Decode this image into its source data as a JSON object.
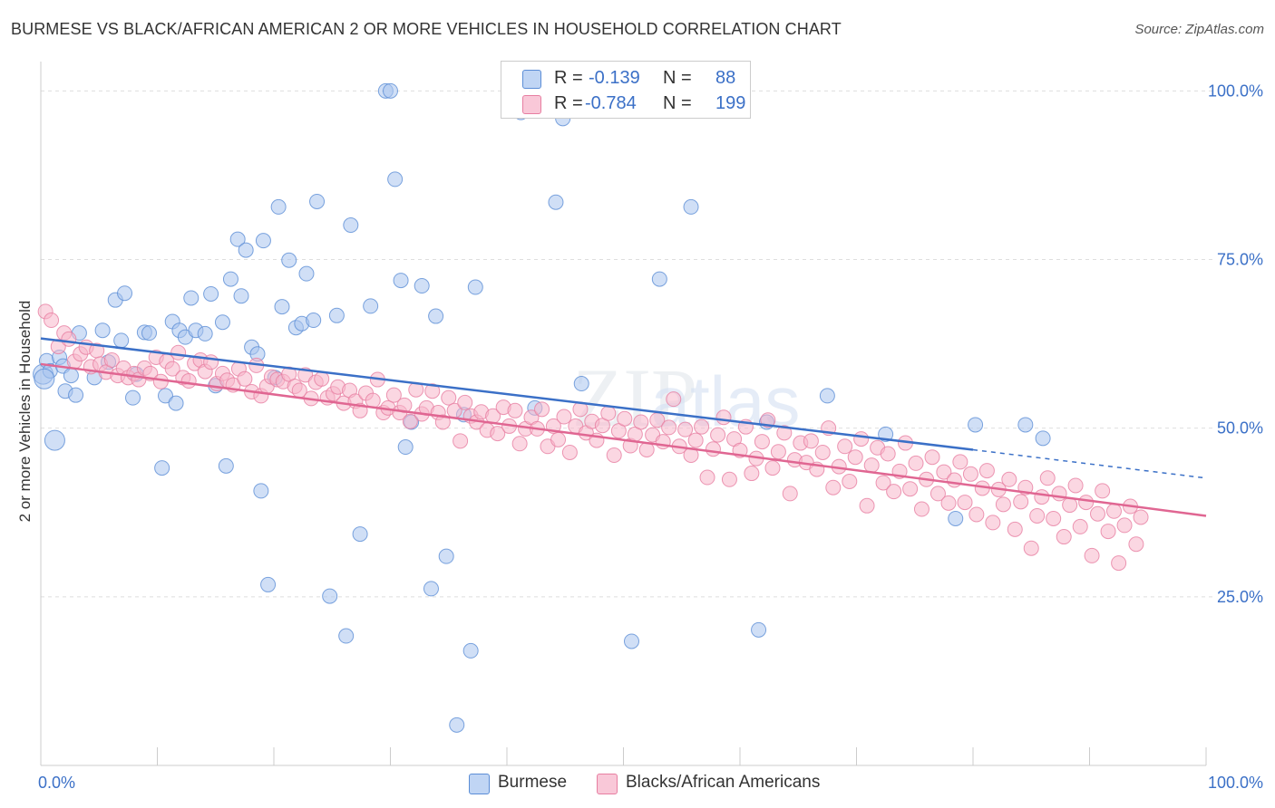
{
  "chart_data": {
    "type": "scatter",
    "title": "BURMESE VS BLACK/AFRICAN AMERICAN 2 OR MORE VEHICLES IN HOUSEHOLD CORRELATION CHART",
    "source": "Source: ZipAtlas.com",
    "xlabel": "",
    "ylabel": "2 or more Vehicles in Household",
    "xlim": [
      0,
      100
    ],
    "ylim": [
      0,
      103
    ],
    "x_tick_labels": [
      {
        "value": 0,
        "label": "0.0%"
      },
      {
        "value": 100,
        "label": "100.0%"
      }
    ],
    "y_tick_labels": [
      {
        "value": 25,
        "label": "25.0%"
      },
      {
        "value": 50,
        "label": "50.0%"
      },
      {
        "value": 75,
        "label": "75.0%"
      },
      {
        "value": 100,
        "label": "100.0%"
      }
    ],
    "grid": true,
    "watermark": "ZIPatlas",
    "legend": {
      "position": "top-center",
      "entries": [
        {
          "r_label": "R =",
          "r_value": "-0.139",
          "n_label": "N =",
          "n_value": "88",
          "color": "#a9c5ef"
        },
        {
          "r_label": "R =",
          "r_value": "-0.784",
          "n_label": "N =",
          "n_value": "199",
          "color": "#f7b6cb"
        }
      ]
    },
    "series": [
      {
        "name": "Burmese",
        "color": "#a9c5ef",
        "edge_color": "#5b8dd6",
        "trend": {
          "x0": 0,
          "y0": 63.3,
          "x1": 80,
          "y1": 46.8,
          "dash_to_x": 100,
          "dash_to_y": 42.6,
          "color": "#3b70c7"
        },
        "points": [
          [
            0.2,
            58.0
          ],
          [
            0.5,
            60.0
          ],
          [
            0.8,
            58.5
          ],
          [
            1.2,
            48.2
          ],
          [
            1.6,
            60.5
          ],
          [
            1.9,
            59.2
          ],
          [
            2.1,
            55.5
          ],
          [
            2.6,
            57.8
          ],
          [
            3.0,
            54.9
          ],
          [
            3.3,
            64.1
          ],
          [
            4.6,
            57.5
          ],
          [
            5.3,
            64.5
          ],
          [
            5.8,
            59.8
          ],
          [
            6.4,
            69.0
          ],
          [
            6.9,
            63.0
          ],
          [
            7.2,
            70.0
          ],
          [
            7.9,
            54.5
          ],
          [
            8.2,
            58.0
          ],
          [
            8.9,
            64.2
          ],
          [
            9.3,
            64.1
          ],
          [
            10.4,
            44.1
          ],
          [
            10.7,
            54.8
          ],
          [
            11.3,
            65.8
          ],
          [
            11.6,
            53.7
          ],
          [
            11.9,
            64.5
          ],
          [
            12.4,
            63.5
          ],
          [
            12.9,
            69.3
          ],
          [
            13.3,
            64.5
          ],
          [
            14.1,
            64.0
          ],
          [
            14.6,
            69.9
          ],
          [
            15.0,
            56.3
          ],
          [
            15.6,
            65.7
          ],
          [
            15.9,
            44.4
          ],
          [
            16.3,
            72.1
          ],
          [
            17.2,
            69.6
          ],
          [
            16.9,
            78.0
          ],
          [
            17.6,
            76.4
          ],
          [
            18.1,
            62.0
          ],
          [
            18.6,
            61.0
          ],
          [
            18.9,
            40.7
          ],
          [
            19.1,
            77.8
          ],
          [
            19.5,
            26.8
          ],
          [
            20.1,
            57.5
          ],
          [
            20.4,
            82.8
          ],
          [
            20.7,
            68.0
          ],
          [
            21.3,
            74.9
          ],
          [
            21.9,
            64.9
          ],
          [
            22.4,
            65.5
          ],
          [
            22.8,
            72.9
          ],
          [
            23.4,
            66.0
          ],
          [
            23.7,
            83.6
          ],
          [
            24.8,
            25.1
          ],
          [
            25.4,
            66.7
          ],
          [
            26.2,
            19.2
          ],
          [
            26.6,
            80.1
          ],
          [
            27.4,
            34.3
          ],
          [
            28.3,
            68.1
          ],
          [
            29.6,
            100.0
          ],
          [
            30.0,
            100.0
          ],
          [
            30.4,
            86.9
          ],
          [
            30.9,
            71.9
          ],
          [
            31.3,
            47.2
          ],
          [
            31.8,
            50.9
          ],
          [
            32.7,
            71.1
          ],
          [
            33.5,
            26.2
          ],
          [
            33.9,
            66.6
          ],
          [
            34.8,
            31.0
          ],
          [
            35.7,
            6.0
          ],
          [
            36.3,
            52.0
          ],
          [
            36.9,
            17.0
          ],
          [
            37.3,
            70.9
          ],
          [
            41.2,
            96.8
          ],
          [
            42.4,
            53.0
          ],
          [
            44.2,
            83.5
          ],
          [
            44.8,
            95.9
          ],
          [
            46.4,
            56.6
          ],
          [
            50.7,
            18.4
          ],
          [
            53.1,
            72.1
          ],
          [
            55.8,
            82.8
          ],
          [
            61.6,
            20.1
          ],
          [
            62.3,
            50.9
          ],
          [
            67.5,
            54.8
          ],
          [
            72.5,
            49.1
          ],
          [
            78.5,
            36.6
          ],
          [
            80.2,
            50.5
          ],
          [
            84.5,
            50.5
          ],
          [
            86.0,
            48.5
          ],
          [
            0.3,
            57.3
          ]
        ]
      },
      {
        "name": "Blacks/African Americans",
        "color": "#f7b6cb",
        "edge_color": "#e77ea1",
        "trend": {
          "x0": 0,
          "y0": 59.5,
          "x1": 100,
          "y1": 37.0,
          "color": "#e06692"
        },
        "points": [
          [
            0.4,
            67.3
          ],
          [
            0.9,
            66.0
          ],
          [
            1.5,
            62.1
          ],
          [
            2.0,
            64.1
          ],
          [
            2.4,
            63.2
          ],
          [
            2.9,
            59.9
          ],
          [
            3.4,
            61.0
          ],
          [
            3.9,
            62.0
          ],
          [
            4.3,
            59.1
          ],
          [
            4.8,
            61.5
          ],
          [
            5.1,
            59.5
          ],
          [
            5.6,
            58.3
          ],
          [
            6.1,
            60.1
          ],
          [
            6.6,
            57.8
          ],
          [
            7.1,
            58.9
          ],
          [
            7.5,
            57.5
          ],
          [
            8.0,
            58.1
          ],
          [
            8.4,
            57.2
          ],
          [
            8.9,
            58.9
          ],
          [
            9.4,
            58.1
          ],
          [
            9.9,
            60.5
          ],
          [
            10.3,
            56.9
          ],
          [
            10.8,
            59.9
          ],
          [
            11.3,
            58.8
          ],
          [
            11.8,
            61.2
          ],
          [
            12.2,
            57.5
          ],
          [
            12.7,
            57.0
          ],
          [
            13.2,
            59.6
          ],
          [
            13.7,
            60.1
          ],
          [
            14.1,
            58.4
          ],
          [
            14.6,
            59.8
          ],
          [
            15.1,
            56.6
          ],
          [
            15.6,
            58.1
          ],
          [
            16.0,
            57.1
          ],
          [
            16.5,
            56.4
          ],
          [
            17.0,
            58.8
          ],
          [
            17.5,
            57.3
          ],
          [
            18.1,
            55.4
          ],
          [
            18.5,
            59.3
          ],
          [
            18.9,
            54.8
          ],
          [
            19.4,
            56.2
          ],
          [
            19.8,
            57.6
          ],
          [
            20.3,
            57.2
          ],
          [
            20.8,
            56.9
          ],
          [
            21.3,
            58.0
          ],
          [
            21.8,
            56.2
          ],
          [
            22.2,
            55.6
          ],
          [
            22.7,
            57.9
          ],
          [
            23.2,
            54.4
          ],
          [
            23.6,
            56.8
          ],
          [
            24.1,
            57.3
          ],
          [
            24.6,
            54.5
          ],
          [
            25.1,
            55.1
          ],
          [
            25.5,
            56.1
          ],
          [
            26.0,
            53.7
          ],
          [
            26.5,
            55.6
          ],
          [
            27.0,
            54.0
          ],
          [
            27.4,
            52.6
          ],
          [
            27.9,
            55.2
          ],
          [
            28.5,
            54.1
          ],
          [
            28.9,
            57.2
          ],
          [
            29.4,
            52.3
          ],
          [
            29.8,
            53.0
          ],
          [
            30.3,
            54.9
          ],
          [
            30.8,
            52.3
          ],
          [
            31.2,
            53.4
          ],
          [
            31.7,
            51.0
          ],
          [
            32.2,
            55.7
          ],
          [
            32.7,
            52.1
          ],
          [
            33.1,
            53.0
          ],
          [
            33.6,
            55.5
          ],
          [
            34.1,
            52.3
          ],
          [
            34.5,
            50.9
          ],
          [
            35.0,
            54.5
          ],
          [
            35.5,
            52.6
          ],
          [
            36.0,
            48.1
          ],
          [
            36.4,
            53.8
          ],
          [
            36.9,
            51.8
          ],
          [
            37.4,
            50.9
          ],
          [
            37.8,
            52.4
          ],
          [
            38.3,
            49.7
          ],
          [
            38.8,
            51.8
          ],
          [
            39.2,
            49.2
          ],
          [
            39.7,
            53.1
          ],
          [
            40.2,
            50.3
          ],
          [
            40.7,
            52.6
          ],
          [
            41.1,
            47.7
          ],
          [
            41.6,
            49.9
          ],
          [
            42.1,
            51.6
          ],
          [
            42.6,
            49.9
          ],
          [
            43.0,
            52.8
          ],
          [
            43.5,
            47.3
          ],
          [
            44.0,
            50.3
          ],
          [
            44.4,
            48.3
          ],
          [
            44.9,
            51.7
          ],
          [
            45.4,
            46.4
          ],
          [
            45.9,
            50.3
          ],
          [
            46.3,
            52.8
          ],
          [
            46.8,
            49.3
          ],
          [
            47.3,
            51.0
          ],
          [
            47.7,
            48.2
          ],
          [
            48.2,
            50.4
          ],
          [
            48.7,
            52.2
          ],
          [
            49.2,
            46.0
          ],
          [
            49.6,
            49.6
          ],
          [
            50.1,
            51.4
          ],
          [
            50.6,
            47.4
          ],
          [
            51.0,
            49.1
          ],
          [
            51.5,
            50.9
          ],
          [
            52.0,
            46.8
          ],
          [
            52.5,
            49.0
          ],
          [
            52.9,
            51.2
          ],
          [
            53.4,
            48.0
          ],
          [
            53.9,
            50.1
          ],
          [
            54.3,
            54.3
          ],
          [
            54.8,
            47.3
          ],
          [
            55.3,
            49.8
          ],
          [
            55.8,
            46.0
          ],
          [
            56.2,
            48.2
          ],
          [
            56.7,
            50.2
          ],
          [
            57.2,
            42.7
          ],
          [
            57.7,
            46.9
          ],
          [
            58.1,
            49.0
          ],
          [
            58.6,
            51.6
          ],
          [
            59.1,
            42.4
          ],
          [
            59.5,
            48.4
          ],
          [
            60.0,
            46.7
          ],
          [
            60.5,
            50.2
          ],
          [
            61.0,
            43.3
          ],
          [
            61.4,
            45.5
          ],
          [
            61.9,
            48.0
          ],
          [
            62.4,
            51.2
          ],
          [
            62.8,
            44.1
          ],
          [
            63.3,
            46.5
          ],
          [
            63.8,
            49.3
          ],
          [
            64.3,
            40.3
          ],
          [
            64.7,
            45.3
          ],
          [
            65.2,
            47.8
          ],
          [
            65.7,
            44.9
          ],
          [
            66.1,
            48.1
          ],
          [
            66.6,
            43.9
          ],
          [
            67.1,
            46.4
          ],
          [
            67.6,
            50.0
          ],
          [
            68.0,
            41.2
          ],
          [
            68.5,
            44.3
          ],
          [
            69.0,
            47.3
          ],
          [
            69.4,
            42.1
          ],
          [
            69.9,
            45.7
          ],
          [
            70.4,
            48.4
          ],
          [
            70.9,
            38.5
          ],
          [
            71.3,
            44.5
          ],
          [
            71.8,
            47.1
          ],
          [
            72.3,
            41.9
          ],
          [
            72.7,
            46.2
          ],
          [
            73.2,
            40.6
          ],
          [
            73.7,
            43.6
          ],
          [
            74.2,
            47.8
          ],
          [
            74.6,
            41.0
          ],
          [
            75.1,
            44.8
          ],
          [
            75.6,
            38.0
          ],
          [
            76.0,
            42.4
          ],
          [
            76.5,
            45.7
          ],
          [
            77.0,
            40.3
          ],
          [
            77.5,
            43.5
          ],
          [
            77.9,
            38.9
          ],
          [
            78.4,
            42.3
          ],
          [
            78.9,
            45.0
          ],
          [
            79.3,
            39.0
          ],
          [
            79.8,
            43.2
          ],
          [
            80.3,
            37.2
          ],
          [
            80.8,
            41.1
          ],
          [
            81.2,
            43.7
          ],
          [
            81.7,
            36.0
          ],
          [
            82.2,
            40.9
          ],
          [
            82.6,
            38.7
          ],
          [
            83.1,
            42.4
          ],
          [
            83.6,
            35.0
          ],
          [
            84.1,
            39.1
          ],
          [
            84.5,
            41.2
          ],
          [
            85.0,
            32.2
          ],
          [
            85.5,
            37.0
          ],
          [
            85.9,
            39.8
          ],
          [
            86.4,
            42.6
          ],
          [
            86.9,
            36.6
          ],
          [
            87.4,
            40.3
          ],
          [
            87.8,
            33.9
          ],
          [
            88.3,
            38.6
          ],
          [
            88.8,
            41.5
          ],
          [
            89.2,
            35.4
          ],
          [
            89.7,
            39.0
          ],
          [
            90.2,
            31.1
          ],
          [
            90.7,
            37.3
          ],
          [
            91.1,
            40.7
          ],
          [
            91.6,
            34.7
          ],
          [
            92.1,
            37.7
          ],
          [
            92.5,
            30.0
          ],
          [
            93.0,
            35.6
          ],
          [
            93.5,
            38.4
          ],
          [
            94.0,
            32.8
          ],
          [
            94.4,
            36.8
          ]
        ]
      }
    ]
  }
}
